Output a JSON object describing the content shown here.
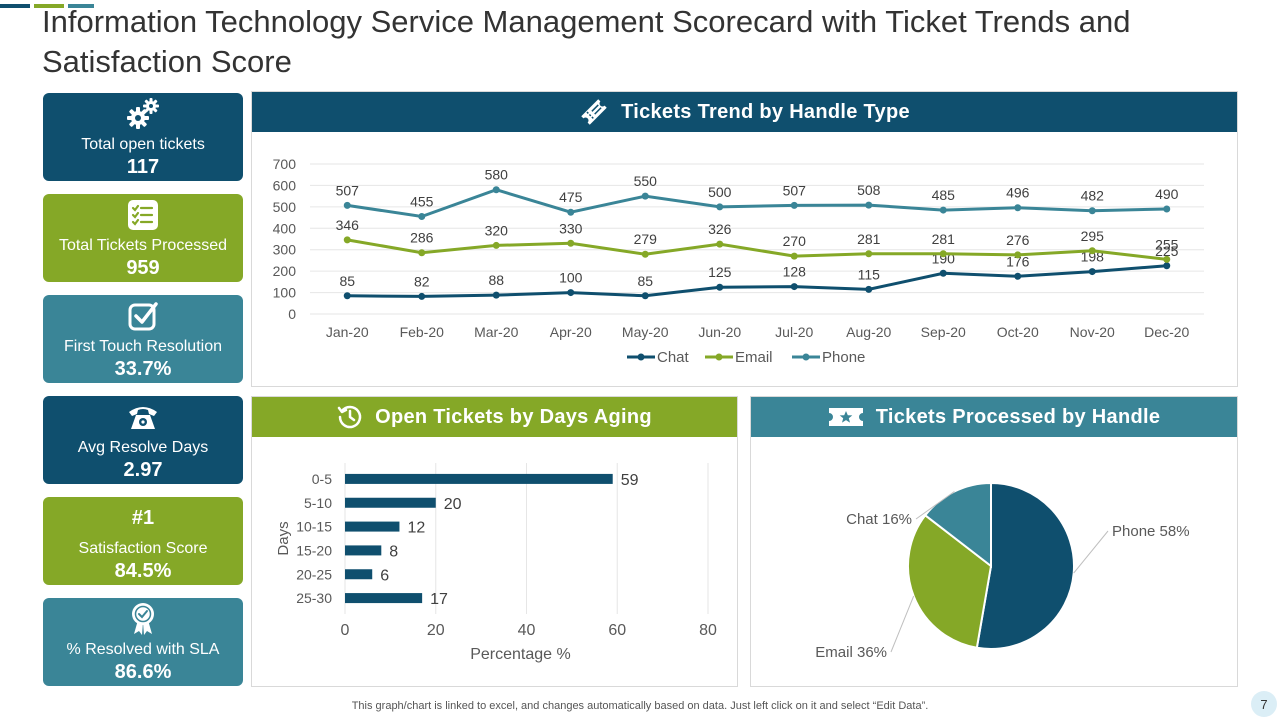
{
  "title": "Information Technology Service Management Scorecard with Ticket Trends and Satisfaction Score",
  "colors": {
    "dark": "#0f4f6e",
    "green": "#85a827",
    "teal": "#3a8597",
    "grid": "#e6e6e6"
  },
  "kpis": [
    {
      "icon": "gears-icon",
      "label": "Total open tickets",
      "value": "117",
      "color": "#0f4f6e"
    },
    {
      "icon": "checklist-icon",
      "label": "Total Tickets Processed",
      "value": "959",
      "color": "#85a827"
    },
    {
      "icon": "checkbox-icon",
      "label": "First Touch Resolution",
      "value": "33.7%",
      "color": "#3a8597"
    },
    {
      "icon": "telephone-icon",
      "label": "Avg Resolve Days",
      "value": "2.97",
      "color": "#0f4f6e"
    },
    {
      "icon": "",
      "rank": "#1",
      "label": "Satisfaction Score",
      "value": "84.5%",
      "color": "#85a827"
    },
    {
      "icon": "award-ribbon-icon",
      "label": "% Resolved with SLA",
      "value": "86.6%",
      "color": "#3a8597"
    }
  ],
  "panels": {
    "trend": {
      "title": "Tickets Trend by Handle Type"
    },
    "aging": {
      "title": "Open Tickets by Days Aging"
    },
    "handle": {
      "title": "Tickets Processed  by Handle"
    }
  },
  "chart_data": [
    {
      "type": "line",
      "title": "Tickets Trend by Handle Type",
      "categories": [
        "Jan-20",
        "Feb-20",
        "Mar-20",
        "Apr-20",
        "May-20",
        "Jun-20",
        "Jul-20",
        "Aug-20",
        "Sep-20",
        "Oct-20",
        "Nov-20",
        "Dec-20"
      ],
      "ylim": [
        0,
        700
      ],
      "yticks": [
        0,
        100,
        200,
        300,
        400,
        500,
        600,
        700
      ],
      "grid": true,
      "legend": "bottom",
      "series": [
        {
          "name": "Chat",
          "color": "#0f4f6e",
          "values": [
            85,
            82,
            88,
            100,
            85,
            125,
            128,
            115,
            190,
            176,
            198,
            225
          ]
        },
        {
          "name": "Email",
          "color": "#85a827",
          "values": [
            346,
            286,
            320,
            330,
            279,
            326,
            270,
            281,
            281,
            276,
            295,
            255
          ]
        },
        {
          "name": "Phone",
          "color": "#3a8597",
          "values": [
            507,
            455,
            580,
            475,
            550,
            500,
            507,
            508,
            485,
            496,
            482,
            490
          ]
        }
      ]
    },
    {
      "type": "bar",
      "orientation": "horizontal",
      "title": "Open Tickets by Days Aging",
      "categories": [
        "0-5",
        "5-10",
        "10-15",
        "15-20",
        "20-25",
        "25-30"
      ],
      "values": [
        59,
        20,
        12,
        8,
        6,
        17
      ],
      "xlabel": "Percentage %",
      "ylabel": "Days",
      "xlim": [
        0,
        80
      ],
      "xticks": [
        0,
        20,
        40,
        60,
        80
      ],
      "color": "#0f4f6e"
    },
    {
      "type": "pie",
      "title": "Tickets Processed  by Handle",
      "slices": [
        {
          "label": "Phone 58%",
          "value": 58,
          "color": "#0f4f6e"
        },
        {
          "label": "Email 36%",
          "value": 36,
          "color": "#85a827"
        },
        {
          "label": "Chat 16%",
          "value": 16,
          "color": "#3a8597"
        }
      ]
    }
  ],
  "footer": {
    "note": "This graph/chart is linked to excel,  and changes automatically based on data. Just left click on it and select “Edit Data”.",
    "page": "7"
  }
}
